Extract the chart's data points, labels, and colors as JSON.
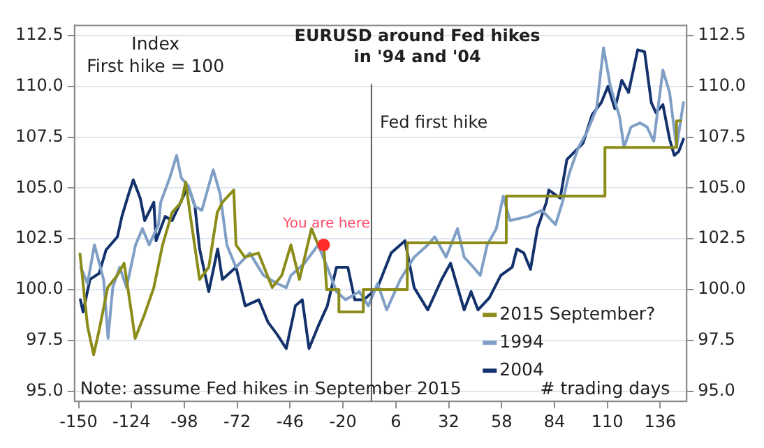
{
  "chart_data": {
    "type": "line",
    "title": "EURUSD around Fed hikes\nin '94 and '04",
    "annotations": [
      "Index\nFirst hike = 100",
      "Note: assume Fed hikes in September 2015",
      "# trading days",
      {
        "text": "You are here",
        "x": -29.5,
        "y": 102.2
      }
    ],
    "xlim": [
      -152,
      149
    ],
    "xticks": [
      -150,
      -124,
      -98,
      -72,
      -46,
      -20,
      6,
      32,
      58,
      84,
      110,
      136
    ],
    "ylim": [
      94.5,
      113
    ],
    "yticks": [
      {
        "value": 95,
        "label": "95.0"
      },
      {
        "value": 97.5,
        "label": "97.5"
      },
      {
        "value": 100,
        "label": "100.0"
      },
      {
        "value": 102.5,
        "label": "102.5"
      },
      {
        "value": 105,
        "label": "105.0"
      },
      {
        "value": 107.5,
        "label": "107.5"
      },
      {
        "value": 110,
        "label": "110.0"
      },
      {
        "value": 112.5,
        "label": "112.5"
      }
    ],
    "y2lim": [
      94.5,
      113
    ],
    "y2ticks": [
      {
        "value": 95,
        "label": "95.0"
      },
      {
        "value": 97.5,
        "label": "97.5"
      },
      {
        "value": 100,
        "label": "100.0"
      },
      {
        "value": 102.5,
        "label": "102.5"
      },
      {
        "value": 105,
        "label": "105.0"
      },
      {
        "value": 107.5,
        "label": "107.5"
      },
      {
        "value": 110,
        "label": "110.0"
      },
      {
        "value": 112.5,
        "label": "112.5"
      }
    ],
    "grid": "y",
    "legend": "bottom right",
    "ref_lines": [
      {
        "axis": "x",
        "value": -6,
        "label": "Fed first hike",
        "color": "#595959"
      }
    ],
    "series": [
      {
        "name": "2015 September?",
        "color": "#8c8c1a",
        "x": [
          -149.3,
          -145.6,
          -142.6,
          -139.9,
          -135.7,
          -131,
          -127.6,
          -124.2,
          -122.2,
          -117.5,
          -113,
          -108.7,
          -104,
          -99.5,
          -97.3,
          -95.3,
          -90.5,
          -86,
          -81.8,
          -79.3,
          -73.7,
          -72.6,
          -68.3,
          -61.6,
          -54.8,
          -50.1,
          -45.6,
          -41.4,
          -35.5,
          -32.2,
          -29.5,
          -28,
          -22,
          -22,
          -10,
          -10,
          11.6,
          11.6,
          60.3,
          60.3,
          108.8,
          108.8,
          144,
          144,
          146
        ],
        "values": [
          101.75,
          98.2,
          96.8,
          98,
          100.1,
          100.7,
          101.3,
          99,
          97.6,
          98.8,
          100.1,
          102.2,
          103.8,
          104.3,
          105.3,
          103.8,
          100.5,
          101.1,
          103.8,
          104.3,
          104.9,
          102.2,
          101.6,
          101.8,
          100.1,
          100.7,
          102.2,
          100.5,
          103,
          102.2,
          102.2,
          100,
          100,
          98.9,
          98.9,
          100,
          100,
          102.3,
          102.3,
          104.6,
          104.6,
          107,
          107,
          108.3,
          108.3
        ]
      },
      {
        "name": "1994",
        "color": "#7f9fc6",
        "x": [
          -148.9,
          -145.6,
          -142.2,
          -137.7,
          -135.5,
          -133.2,
          -129.8,
          -126.4,
          -122,
          -118.6,
          -115.3,
          -110.7,
          -109.6,
          -105.2,
          -101.8,
          -99.5,
          -96.1,
          -92.8,
          -89.4,
          -83.8,
          -80.4,
          -77.1,
          -72.6,
          -65.8,
          -59.1,
          -52.4,
          -47.9,
          -45.6,
          -38.9,
          -32.2,
          -27.7,
          -23.2,
          -18.7,
          -12,
          -7.5,
          -3,
          1.5,
          8.2,
          15,
          21.7,
          25.1,
          30.7,
          36.3,
          39.6,
          44.1,
          47.5,
          50.9,
          55.4,
          58.8,
          62.1,
          71.1,
          77.8,
          84.5,
          87.9,
          91.2,
          95.8,
          100.2,
          104.7,
          108.1,
          111.5,
          116,
          118.2,
          121.6,
          126.1,
          129.5,
          132.8,
          137.3,
          140.6,
          144,
          147.4
        ],
        "values": [
          101.1,
          100.3,
          102.2,
          100.5,
          97.6,
          100.1,
          101.1,
          100.1,
          102.2,
          103,
          102.2,
          103.2,
          104.3,
          105.5,
          106.6,
          105.5,
          105.1,
          104.1,
          103.9,
          105.9,
          104.7,
          102.2,
          101.1,
          101.8,
          100.7,
          100.3,
          100.1,
          100.7,
          101.3,
          102.2,
          101.1,
          99.9,
          99.5,
          99.9,
          99.2,
          100.3,
          99,
          100.5,
          101.6,
          102.2,
          102.6,
          101.6,
          103,
          101.6,
          101.1,
          100.7,
          102.2,
          103,
          104.6,
          103.4,
          103.6,
          103.9,
          103.2,
          104.3,
          105.7,
          107,
          107.8,
          108.9,
          111.9,
          110,
          108.5,
          107,
          108,
          108.2,
          108,
          107.3,
          110.8,
          109.7,
          107,
          109.2
        ]
      },
      {
        "name": "2004",
        "color": "#13316b",
        "x": [
          -149.1,
          -147.8,
          -144.4,
          -139.9,
          -136.5,
          -130.9,
          -128.7,
          -125.4,
          -123.1,
          -119.7,
          -117.5,
          -113,
          -111.9,
          -107.4,
          -104,
          -96.1,
          -92.8,
          -90.5,
          -86,
          -81.6,
          -79.3,
          -72.6,
          -68.1,
          -61.4,
          -56.9,
          -52.4,
          -47.9,
          -43.4,
          -40,
          -36.7,
          -32.2,
          -27.7,
          -23.2,
          -17.6,
          -14.2,
          -9.7,
          -3,
          3.7,
          10.5,
          15,
          21.7,
          28.5,
          32.9,
          39.6,
          43,
          46.4,
          52,
          57.6,
          63.2,
          65.5,
          68.9,
          72.2,
          75.6,
          80,
          81.2,
          86.8,
          90.1,
          98,
          102.5,
          107,
          110.3,
          113.7,
          117.1,
          120.4,
          124.9,
          128.3,
          131.6,
          133.9,
          137.3,
          140.6,
          142.9,
          145.1,
          147.4
        ],
        "values": [
          99.5,
          98.9,
          100.5,
          100.8,
          101.95,
          102.6,
          103.6,
          104.7,
          105.4,
          104.5,
          103.4,
          104.3,
          102.4,
          103.6,
          103.4,
          105.1,
          104.1,
          102,
          99.9,
          102,
          100.5,
          101.1,
          99.2,
          99.5,
          98.4,
          97.8,
          97.1,
          99.2,
          99.5,
          97.1,
          98.2,
          99.2,
          101.1,
          101.1,
          99.5,
          99.5,
          100.1,
          101.8,
          102.4,
          100.1,
          99,
          100.5,
          101.3,
          99,
          99.9,
          99,
          99.6,
          100.7,
          101.1,
          102,
          101.8,
          101,
          103,
          104.3,
          104.9,
          104.5,
          106.4,
          107.2,
          108.6,
          109.2,
          110,
          108.9,
          110.3,
          109.7,
          111.8,
          111.7,
          109.2,
          108.7,
          109.1,
          107.4,
          106.6,
          106.8,
          107.4
        ]
      }
    ]
  }
}
